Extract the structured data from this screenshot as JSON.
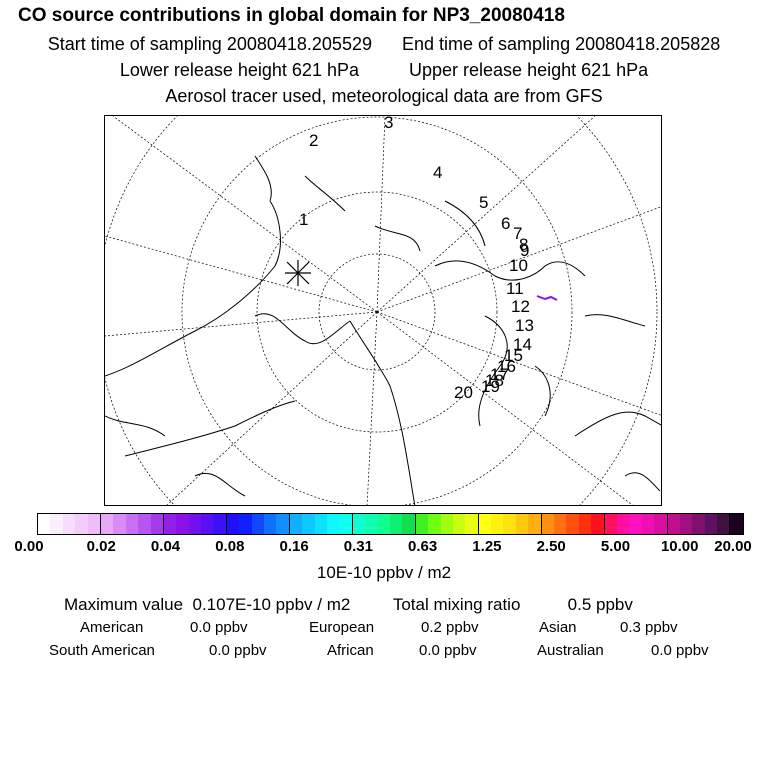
{
  "header": {
    "title": "CO  source contributions in global domain for NP3_20080418",
    "start_label": "Start time of sampling 20080418.205529",
    "end_label": "End time of sampling 20080418.205828",
    "lower_label": "Lower release height  621 hPa",
    "upper_label": "Upper release height  621 hPa",
    "tracer_label": "Aerosol tracer used, meteorological data are from GFS"
  },
  "map": {
    "trajectory_labels": [
      "1",
      "2",
      "3",
      "4",
      "5",
      "6",
      "7",
      "8",
      "9",
      "10",
      "11",
      "12",
      "13",
      "14",
      "15",
      "16",
      "17",
      "18",
      "19",
      "20"
    ]
  },
  "colorbar": {
    "tick_labels": [
      "0.00",
      "0.02",
      "0.04",
      "0.08",
      "0.16",
      "0.31",
      "0.63",
      "1.25",
      "2.50",
      "5.00",
      "10.00",
      "20.00"
    ],
    "colors": [
      "#ffffff",
      "#fbeefe",
      "#f7ddfd",
      "#f3ccfc",
      "#efbbfb",
      "#e8a8f8",
      "#d98cf5",
      "#c870f2",
      "#b655ef",
      "#a43aec",
      "#9220e8",
      "#8a12e8",
      "#7410f0",
      "#5a10f4",
      "#3c10f8",
      "#2010fa",
      "#1020ff",
      "#1048ff",
      "#1070ff",
      "#1090ff",
      "#10b0ff",
      "#10c8ff",
      "#10e0ff",
      "#10f8ff",
      "#10ffee",
      "#10ffd0",
      "#10ffb0",
      "#10ff90",
      "#10f070",
      "#10e050",
      "#40f020",
      "#70ff10",
      "#a0ff10",
      "#c8ff10",
      "#e8ff10",
      "#ffff10",
      "#fff010",
      "#ffe010",
      "#ffc810",
      "#ffb010",
      "#ff9010",
      "#ff7010",
      "#ff5010",
      "#ff3010",
      "#ff1020",
      "#ff1060",
      "#ff10a0",
      "#ff10c0",
      "#f010b0",
      "#d810a0",
      "#c01090",
      "#a01080",
      "#801070",
      "#601060",
      "#401040",
      "#200020"
    ],
    "units": "10E-10 ppbv / m2"
  },
  "stats": {
    "max_label": "Maximum value",
    "max_value": "0.107E-10 ppbv / m2",
    "total_label": "Total mixing ratio",
    "total_value": "0.5 ppbv",
    "regions": [
      {
        "name": "American",
        "value": "0.0 ppbv"
      },
      {
        "name": "European",
        "value": "0.2 ppbv"
      },
      {
        "name": "Asian",
        "value": "0.3 ppbv"
      },
      {
        "name": "South American",
        "value": "0.0 ppbv"
      },
      {
        "name": "African",
        "value": "0.0 ppbv"
      },
      {
        "name": "Australian",
        "value": "0.0 ppbv"
      }
    ]
  }
}
